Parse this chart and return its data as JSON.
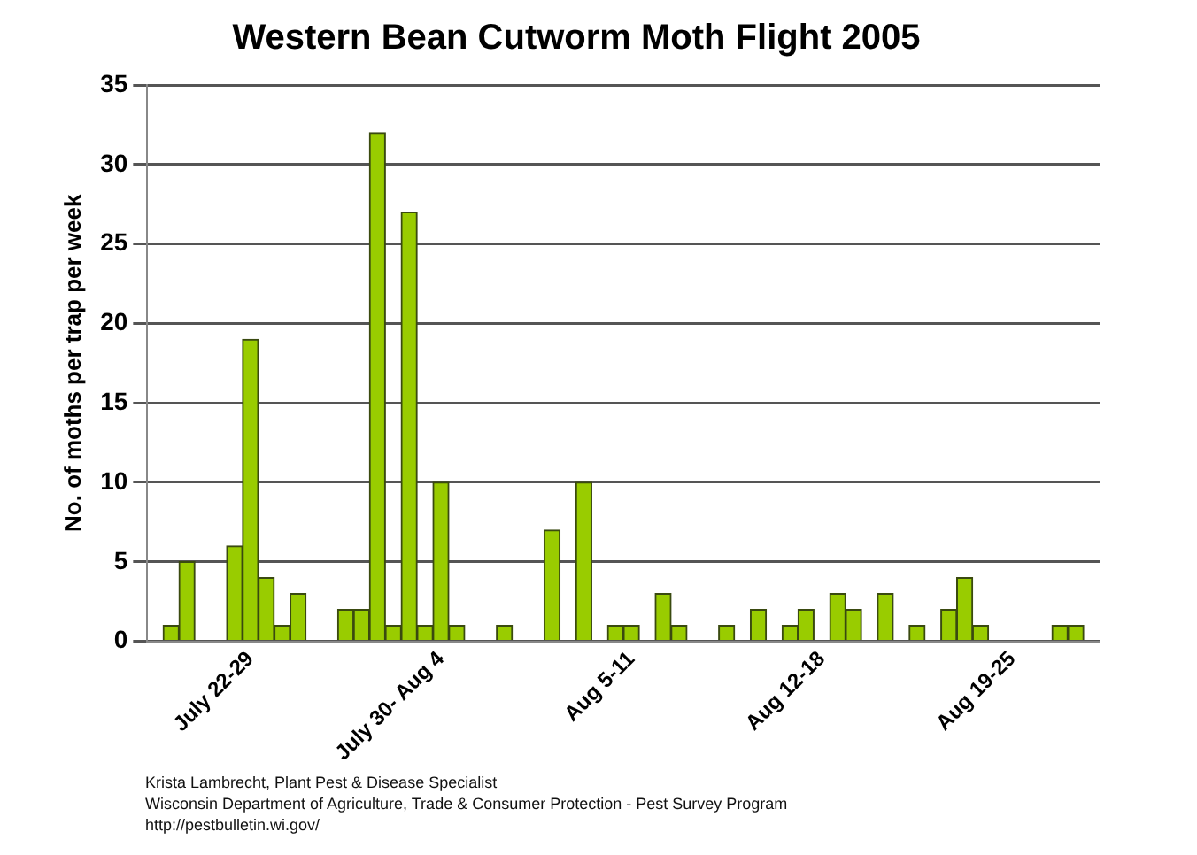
{
  "chart_data": {
    "type": "bar",
    "title": "Western Bean Cutworm Moth Flight 2005",
    "ylabel": "No. of moths per trap per week",
    "categories": [
      null,
      null,
      null,
      null,
      null,
      null,
      "July 22-29",
      null,
      null,
      null,
      null,
      null,
      null,
      null,
      null,
      null,
      null,
      null,
      "July 30- Aug 4",
      null,
      null,
      null,
      null,
      null,
      null,
      null,
      null,
      null,
      null,
      null,
      "Aug 5-11",
      null,
      null,
      null,
      null,
      null,
      null,
      null,
      null,
      null,
      null,
      null,
      "Aug 12-18",
      null,
      null,
      null,
      null,
      null,
      null,
      null,
      null,
      null,
      null,
      null,
      "Aug 19-25",
      null,
      null,
      null,
      null,
      null
    ],
    "values": [
      null,
      1,
      5,
      null,
      null,
      6,
      19,
      4,
      1,
      3,
      null,
      null,
      2,
      2,
      32,
      1,
      27,
      1,
      10,
      1,
      null,
      null,
      1,
      null,
      null,
      7,
      null,
      10,
      null,
      1,
      1,
      null,
      3,
      1,
      null,
      null,
      1,
      null,
      2,
      null,
      1,
      2,
      null,
      3,
      2,
      null,
      3,
      null,
      1,
      null,
      2,
      4,
      1,
      null,
      null,
      null,
      null,
      1,
      1,
      null
    ],
    "color": "#99cc00",
    "ylim": [
      0,
      35
    ],
    "yticks": [
      0,
      5,
      10,
      15,
      20,
      25,
      30,
      35
    ],
    "grid": "y",
    "legend": false,
    "annotations": [
      "Krista Lambrecht, Plant Pest & Disease Specialist",
      "Wisconsin Department of Agriculture, Trade & Consumer Protection - Pest Survey Program",
      "http://pestbulletin.wi.gov/"
    ]
  }
}
